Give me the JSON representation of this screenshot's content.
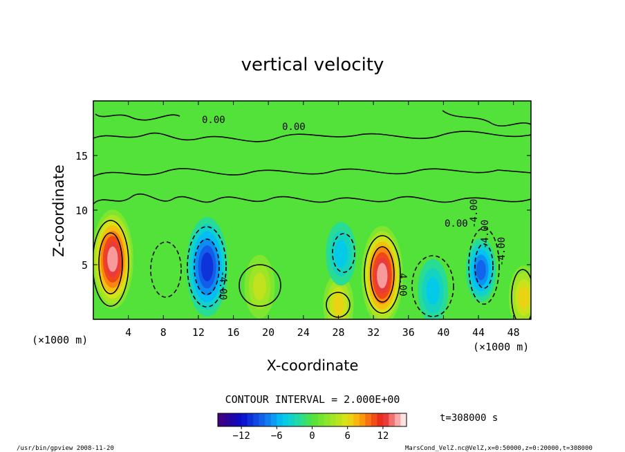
{
  "chart_data": {
    "type": "heatmap",
    "title": "vertical velocity",
    "xlabel": "X-coordinate",
    "ylabel": "Z-coordinate",
    "x_units_left": "(×1000 m)",
    "x_units_right": "(×1000 m)",
    "xlim": [
      0,
      50
    ],
    "ylim": [
      0,
      20
    ],
    "x_ticks": [
      4,
      8,
      12,
      16,
      20,
      24,
      28,
      32,
      36,
      40,
      44,
      48
    ],
    "y_ticks": [
      5,
      10,
      15
    ],
    "contour_interval": "CONTOUR INTERVAL = 2.000E+00",
    "contour_labels": [
      "0.00",
      "0.00",
      "-4.00",
      "4.00",
      "-4.00",
      "-4.00",
      "-4.00",
      "0.00"
    ],
    "colorbar": {
      "range": [
        -16,
        16
      ],
      "ticks": [
        -12,
        -6,
        0,
        6,
        12
      ]
    },
    "time_label": "t=308000 s",
    "features": [
      {
        "x": 2.2,
        "z": 5.5,
        "value": 16
      },
      {
        "x": 13.0,
        "z": 4.8,
        "value": -12
      },
      {
        "x": 19.0,
        "z": 3.0,
        "value": 6
      },
      {
        "x": 28.0,
        "z": 1.3,
        "value": 8
      },
      {
        "x": 28.3,
        "z": 6.0,
        "value": -6
      },
      {
        "x": 33.0,
        "z": 4.0,
        "value": 16
      },
      {
        "x": 38.8,
        "z": 2.6,
        "value": -6
      },
      {
        "x": 44.3,
        "z": 4.5,
        "value": -10
      },
      {
        "x": 49.2,
        "z": 2.0,
        "value": 8
      }
    ]
  },
  "footer": {
    "left": "/usr/bin/gpview  2008-11-20",
    "right": "MarsCond_VelZ.nc@VelZ,x=0:50000,z=0:20000,t=308000"
  }
}
